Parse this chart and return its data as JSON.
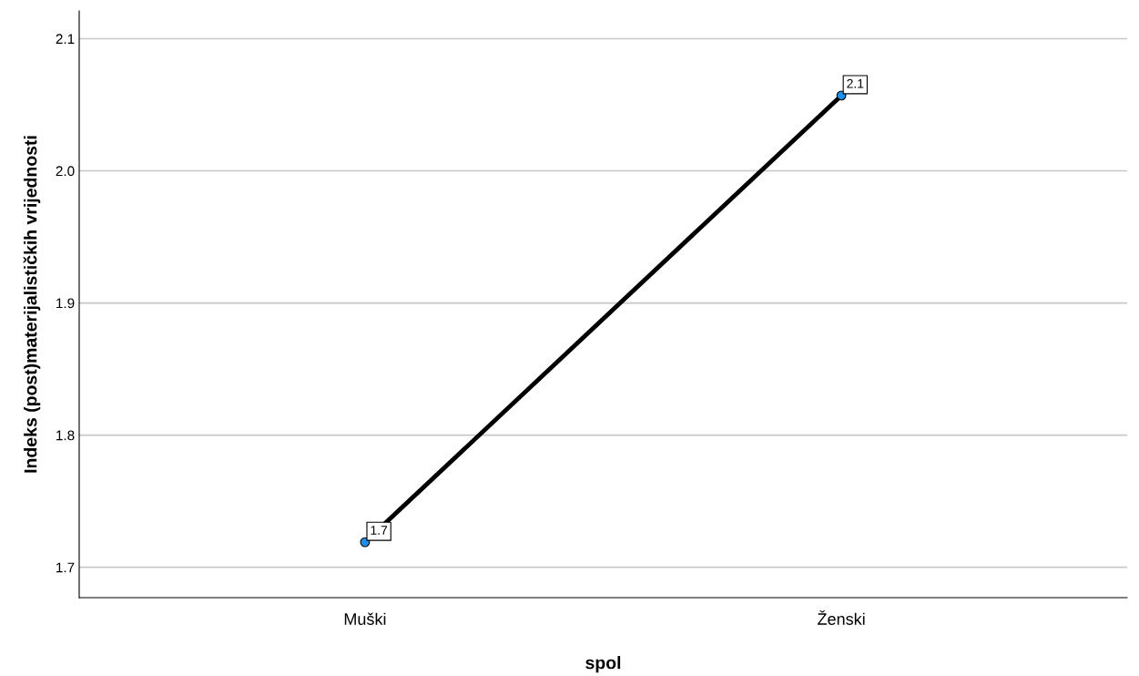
{
  "chart_data": {
    "type": "line",
    "xlabel": "spol",
    "ylabel": "Indeks (post)materijalističkih vrijednosti",
    "categories": [
      "Muški",
      "Ženski"
    ],
    "series": [
      {
        "color": "#000000",
        "values": [
          1.719,
          2.057
        ],
        "value_labels": [
          "1.7",
          "2.1"
        ]
      }
    ],
    "ylim": [
      1.677,
      2.121
    ],
    "yticks": [
      1.7,
      1.8,
      1.9,
      {
        "value": 2.0,
        "label": "2.0"
      },
      2.1
    ],
    "grid": "y",
    "marker": "circle",
    "line_style": "solid"
  }
}
